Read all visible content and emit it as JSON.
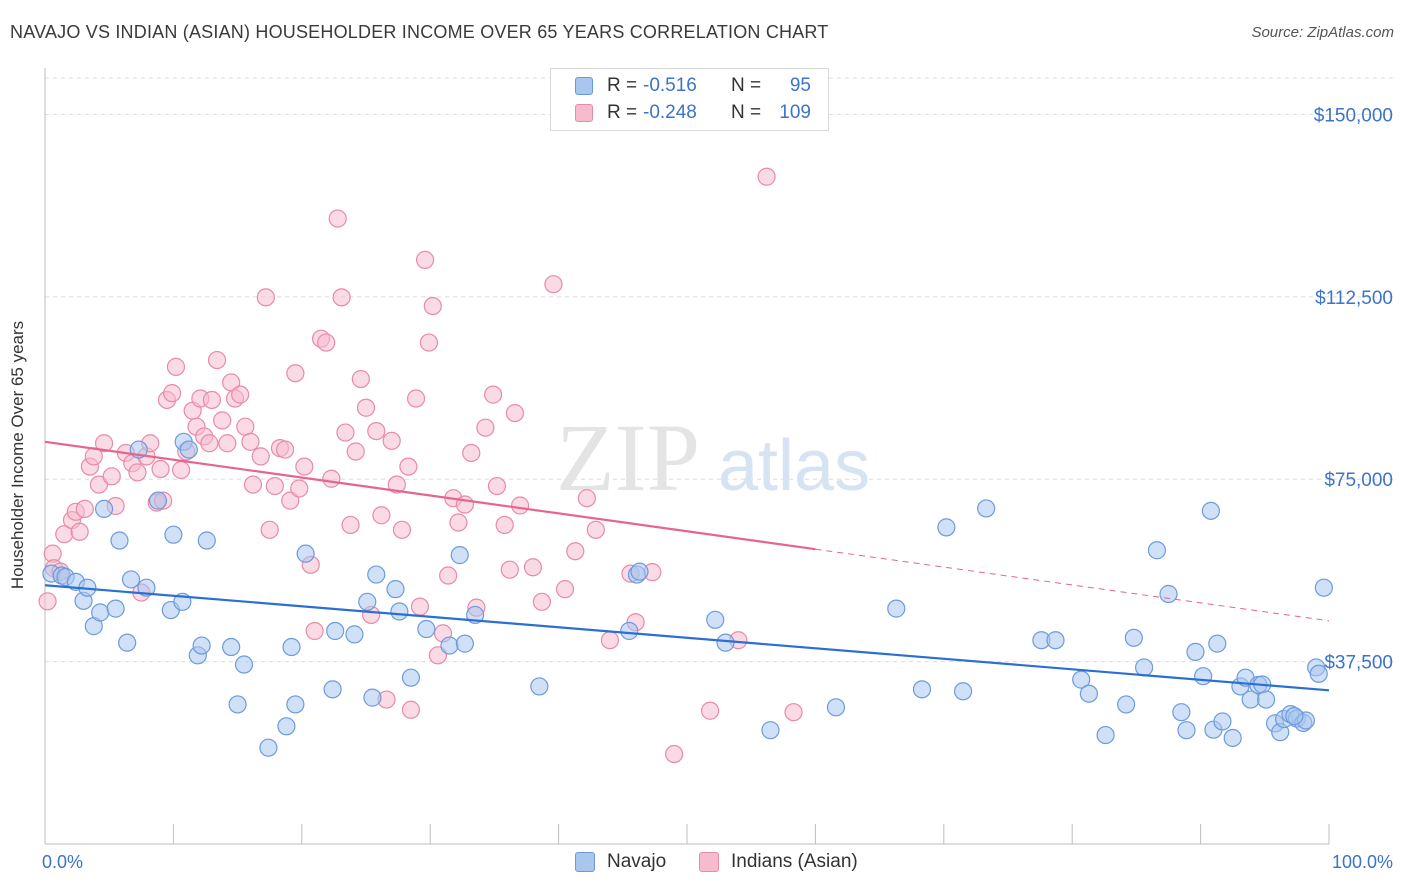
{
  "title": "NAVAJO VS INDIAN (ASIAN) HOUSEHOLDER INCOME OVER 65 YEARS CORRELATION CHART",
  "source": "Source: ZipAtlas.com",
  "watermark": {
    "zip": "ZIP",
    "atlas": "atlas"
  },
  "legend": {
    "rows": [
      {
        "r_label": "R =",
        "r_value": "-0.516",
        "n_label": "N =",
        "n_value": "95"
      },
      {
        "r_label": "R =",
        "r_value": "-0.248",
        "n_label": "N =",
        "n_value": "109"
      }
    ]
  },
  "colors": {
    "navajo_fill": "#a9c6ee",
    "navajo_stroke": "#6c9bdd",
    "navajo_line": "#2a6fd1",
    "indian_fill": "#f6bccd",
    "indian_stroke": "#e98aa7",
    "indian_line": "#e5658d",
    "tick_text": "#3b73c9",
    "grid": "#dcdcdc"
  },
  "chart_data": {
    "type": "scatter",
    "title": "NAVAJO VS INDIAN (ASIAN) HOUSEHOLDER INCOME OVER 65 YEARS CORRELATION CHART",
    "xlabel": "",
    "ylabel": "Householder Income Over 65 years",
    "xlim": [
      0,
      100
    ],
    "ylim": [
      0,
      157500
    ],
    "x_tick_labels": [
      "0.0%",
      "100.0%"
    ],
    "y_ticks": [
      37500,
      75000,
      112500,
      150000
    ],
    "y_tick_labels": [
      "$37,500",
      "$75,000",
      "$112,500",
      "$150,000"
    ],
    "grid": true,
    "legend_position": "top-center",
    "series": [
      {
        "name": "Navajo",
        "r": -0.516,
        "n": 95,
        "trend": {
          "x": [
            0,
            100
          ],
          "y": [
            53200,
            31600
          ]
        },
        "points": [
          [
            0.5,
            55600
          ],
          [
            1.3,
            55200
          ],
          [
            1.6,
            54900
          ],
          [
            2.4,
            53900
          ],
          [
            3.0,
            50000
          ],
          [
            3.3,
            52700
          ],
          [
            3.8,
            44800
          ],
          [
            4.3,
            47600
          ],
          [
            4.6,
            68900
          ],
          [
            5.5,
            48400
          ],
          [
            5.8,
            62400
          ],
          [
            6.4,
            41400
          ],
          [
            6.7,
            54400
          ],
          [
            7.3,
            81100
          ],
          [
            7.9,
            52700
          ],
          [
            8.8,
            70600
          ],
          [
            9.8,
            48100
          ],
          [
            10.0,
            63600
          ],
          [
            10.7,
            49800
          ],
          [
            10.8,
            82700
          ],
          [
            11.2,
            81100
          ],
          [
            11.9,
            38800
          ],
          [
            12.2,
            40800
          ],
          [
            12.6,
            62400
          ],
          [
            14.5,
            40500
          ],
          [
            15.0,
            28700
          ],
          [
            15.5,
            36900
          ],
          [
            17.4,
            19800
          ],
          [
            18.8,
            24200
          ],
          [
            19.2,
            40500
          ],
          [
            19.5,
            28700
          ],
          [
            20.3,
            59700
          ],
          [
            22.4,
            31800
          ],
          [
            22.6,
            43800
          ],
          [
            24.1,
            43100
          ],
          [
            25.1,
            49800
          ],
          [
            25.5,
            30100
          ],
          [
            25.8,
            55400
          ],
          [
            27.3,
            52400
          ],
          [
            27.6,
            47800
          ],
          [
            28.5,
            34200
          ],
          [
            29.7,
            44200
          ],
          [
            31.5,
            40800
          ],
          [
            32.3,
            59400
          ],
          [
            32.7,
            41200
          ],
          [
            33.5,
            47100
          ],
          [
            38.5,
            32400
          ],
          [
            45.5,
            43800
          ],
          [
            46.1,
            55400
          ],
          [
            46.3,
            56000
          ],
          [
            52.2,
            46100
          ],
          [
            53.0,
            41400
          ],
          [
            56.5,
            23400
          ],
          [
            61.6,
            28100
          ],
          [
            66.3,
            48400
          ],
          [
            68.3,
            31800
          ],
          [
            70.2,
            65100
          ],
          [
            71.5,
            31400
          ],
          [
            73.3,
            69000
          ],
          [
            77.6,
            41900
          ],
          [
            78.7,
            41900
          ],
          [
            80.7,
            33800
          ],
          [
            81.3,
            30900
          ],
          [
            82.6,
            22400
          ],
          [
            84.2,
            28700
          ],
          [
            84.8,
            42400
          ],
          [
            85.6,
            36300
          ],
          [
            86.6,
            60400
          ],
          [
            87.5,
            51400
          ],
          [
            88.5,
            27100
          ],
          [
            88.9,
            23400
          ],
          [
            89.6,
            39500
          ],
          [
            90.2,
            34500
          ],
          [
            90.8,
            68500
          ],
          [
            91.0,
            23500
          ],
          [
            91.3,
            41200
          ],
          [
            91.7,
            25200
          ],
          [
            92.5,
            21800
          ],
          [
            93.1,
            32400
          ],
          [
            93.5,
            34200
          ],
          [
            93.9,
            29700
          ],
          [
            94.5,
            32700
          ],
          [
            94.8,
            32800
          ],
          [
            95.1,
            29700
          ],
          [
            95.8,
            24800
          ],
          [
            96.2,
            23000
          ],
          [
            96.5,
            25700
          ],
          [
            97.0,
            26700
          ],
          [
            97.5,
            25800
          ],
          [
            98.0,
            24900
          ],
          [
            98.2,
            25400
          ],
          [
            99.0,
            36300
          ],
          [
            99.2,
            35000
          ],
          [
            99.6,
            52700
          ],
          [
            97.3,
            26300
          ]
        ]
      },
      {
        "name": "Indians (Asian)",
        "r": -0.248,
        "n": 109,
        "trend": {
          "x": [
            0,
            100
          ],
          "y": [
            82700,
            45900
          ]
        },
        "trend_solid_until_x": 60,
        "points": [
          [
            0.2,
            49900
          ],
          [
            0.6,
            59700
          ],
          [
            0.7,
            56700
          ],
          [
            1.2,
            56000
          ],
          [
            1.5,
            63700
          ],
          [
            2.1,
            66600
          ],
          [
            2.4,
            68300
          ],
          [
            2.7,
            64200
          ],
          [
            3.1,
            68900
          ],
          [
            3.5,
            77600
          ],
          [
            3.8,
            79700
          ],
          [
            4.2,
            73900
          ],
          [
            4.6,
            82400
          ],
          [
            5.2,
            75600
          ],
          [
            5.5,
            69500
          ],
          [
            6.3,
            80400
          ],
          [
            6.8,
            78300
          ],
          [
            7.2,
            76400
          ],
          [
            7.5,
            51700
          ],
          [
            7.9,
            79700
          ],
          [
            8.2,
            82400
          ],
          [
            8.7,
            70200
          ],
          [
            9.0,
            77100
          ],
          [
            9.2,
            70600
          ],
          [
            9.5,
            91300
          ],
          [
            9.9,
            92700
          ],
          [
            10.2,
            98100
          ],
          [
            10.6,
            76900
          ],
          [
            11.0,
            80700
          ],
          [
            11.5,
            89100
          ],
          [
            11.8,
            85800
          ],
          [
            12.1,
            91600
          ],
          [
            12.4,
            83800
          ],
          [
            12.8,
            82400
          ],
          [
            13.0,
            91300
          ],
          [
            13.4,
            99500
          ],
          [
            13.8,
            87100
          ],
          [
            14.2,
            82400
          ],
          [
            14.5,
            94900
          ],
          [
            14.8,
            91600
          ],
          [
            15.2,
            92400
          ],
          [
            15.6,
            85800
          ],
          [
            16.0,
            82700
          ],
          [
            16.2,
            73900
          ],
          [
            16.8,
            79700
          ],
          [
            17.2,
            112400
          ],
          [
            17.5,
            64600
          ],
          [
            17.9,
            73600
          ],
          [
            18.3,
            81400
          ],
          [
            18.7,
            81100
          ],
          [
            19.1,
            70600
          ],
          [
            19.5,
            96800
          ],
          [
            19.8,
            73100
          ],
          [
            20.2,
            77600
          ],
          [
            20.7,
            57400
          ],
          [
            21.0,
            43800
          ],
          [
            21.5,
            103900
          ],
          [
            21.9,
            103100
          ],
          [
            22.3,
            75100
          ],
          [
            22.8,
            128600
          ],
          [
            23.1,
            112400
          ],
          [
            23.4,
            84600
          ],
          [
            23.8,
            65600
          ],
          [
            24.2,
            80700
          ],
          [
            24.6,
            95600
          ],
          [
            25.0,
            89700
          ],
          [
            25.4,
            47100
          ],
          [
            25.8,
            84900
          ],
          [
            26.2,
            67600
          ],
          [
            26.6,
            29700
          ],
          [
            27.0,
            82900
          ],
          [
            27.4,
            73900
          ],
          [
            27.8,
            64600
          ],
          [
            28.3,
            77600
          ],
          [
            28.5,
            27600
          ],
          [
            28.9,
            91600
          ],
          [
            29.2,
            48800
          ],
          [
            29.6,
            120100
          ],
          [
            29.9,
            103100
          ],
          [
            30.2,
            110600
          ],
          [
            30.6,
            38800
          ],
          [
            31.0,
            43300
          ],
          [
            31.4,
            55200
          ],
          [
            31.8,
            71100
          ],
          [
            32.2,
            66100
          ],
          [
            32.7,
            69800
          ],
          [
            33.2,
            80400
          ],
          [
            33.6,
            48600
          ],
          [
            34.3,
            85600
          ],
          [
            34.9,
            92400
          ],
          [
            35.2,
            73600
          ],
          [
            35.8,
            65600
          ],
          [
            36.2,
            56400
          ],
          [
            36.6,
            88600
          ],
          [
            37.0,
            69600
          ],
          [
            38.0,
            56900
          ],
          [
            38.7,
            49800
          ],
          [
            39.6,
            115100
          ],
          [
            40.5,
            52400
          ],
          [
            41.3,
            60200
          ],
          [
            42.2,
            71100
          ],
          [
            42.9,
            64600
          ],
          [
            44.0,
            41900
          ],
          [
            45.6,
            55600
          ],
          [
            46.0,
            45600
          ],
          [
            47.3,
            55900
          ],
          [
            49.0,
            18500
          ],
          [
            51.8,
            27400
          ],
          [
            54.0,
            41900
          ],
          [
            56.2,
            137200
          ],
          [
            58.3,
            27100
          ]
        ]
      }
    ]
  },
  "bottom_legend": {
    "navajo": "Navajo",
    "indian": "Indians (Asian)"
  }
}
